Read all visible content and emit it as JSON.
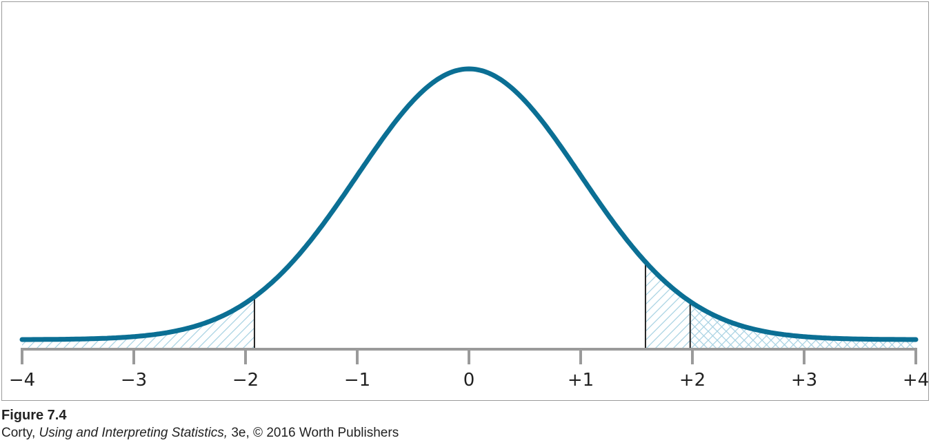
{
  "chart_data": {
    "type": "area",
    "distribution": "normal",
    "x_ticks": [
      {
        "value": -4,
        "label": "−4"
      },
      {
        "value": -3,
        "label": "−3"
      },
      {
        "value": -2,
        "label": "−2"
      },
      {
        "value": -1,
        "label": "−1"
      },
      {
        "value": 0,
        "label": "0"
      },
      {
        "value": 1,
        "label": "+1"
      },
      {
        "value": 2,
        "label": "+2"
      },
      {
        "value": 3,
        "label": "+3"
      },
      {
        "value": 4,
        "label": "+4"
      }
    ],
    "xlim": [
      -4,
      4
    ],
    "cutoffs": [
      -1.92,
      1.58,
      1.98
    ],
    "shaded_regions": [
      {
        "from": -4,
        "to": -1.92,
        "hatch": "diagonal"
      },
      {
        "from": 1.58,
        "to": 4,
        "hatch": "diagonal"
      },
      {
        "from": 1.98,
        "to": 4,
        "hatch": "crosshatch"
      }
    ],
    "grid": false,
    "curve_color": "#0b6f94",
    "hatch_color": "#a9d3e3"
  },
  "caption": {
    "figure_label": "Figure 7.4",
    "author": "Corty,",
    "book_title": "Using and Interpreting Statistics,",
    "edition_rest": "3e, © 2016 Worth Publishers"
  }
}
